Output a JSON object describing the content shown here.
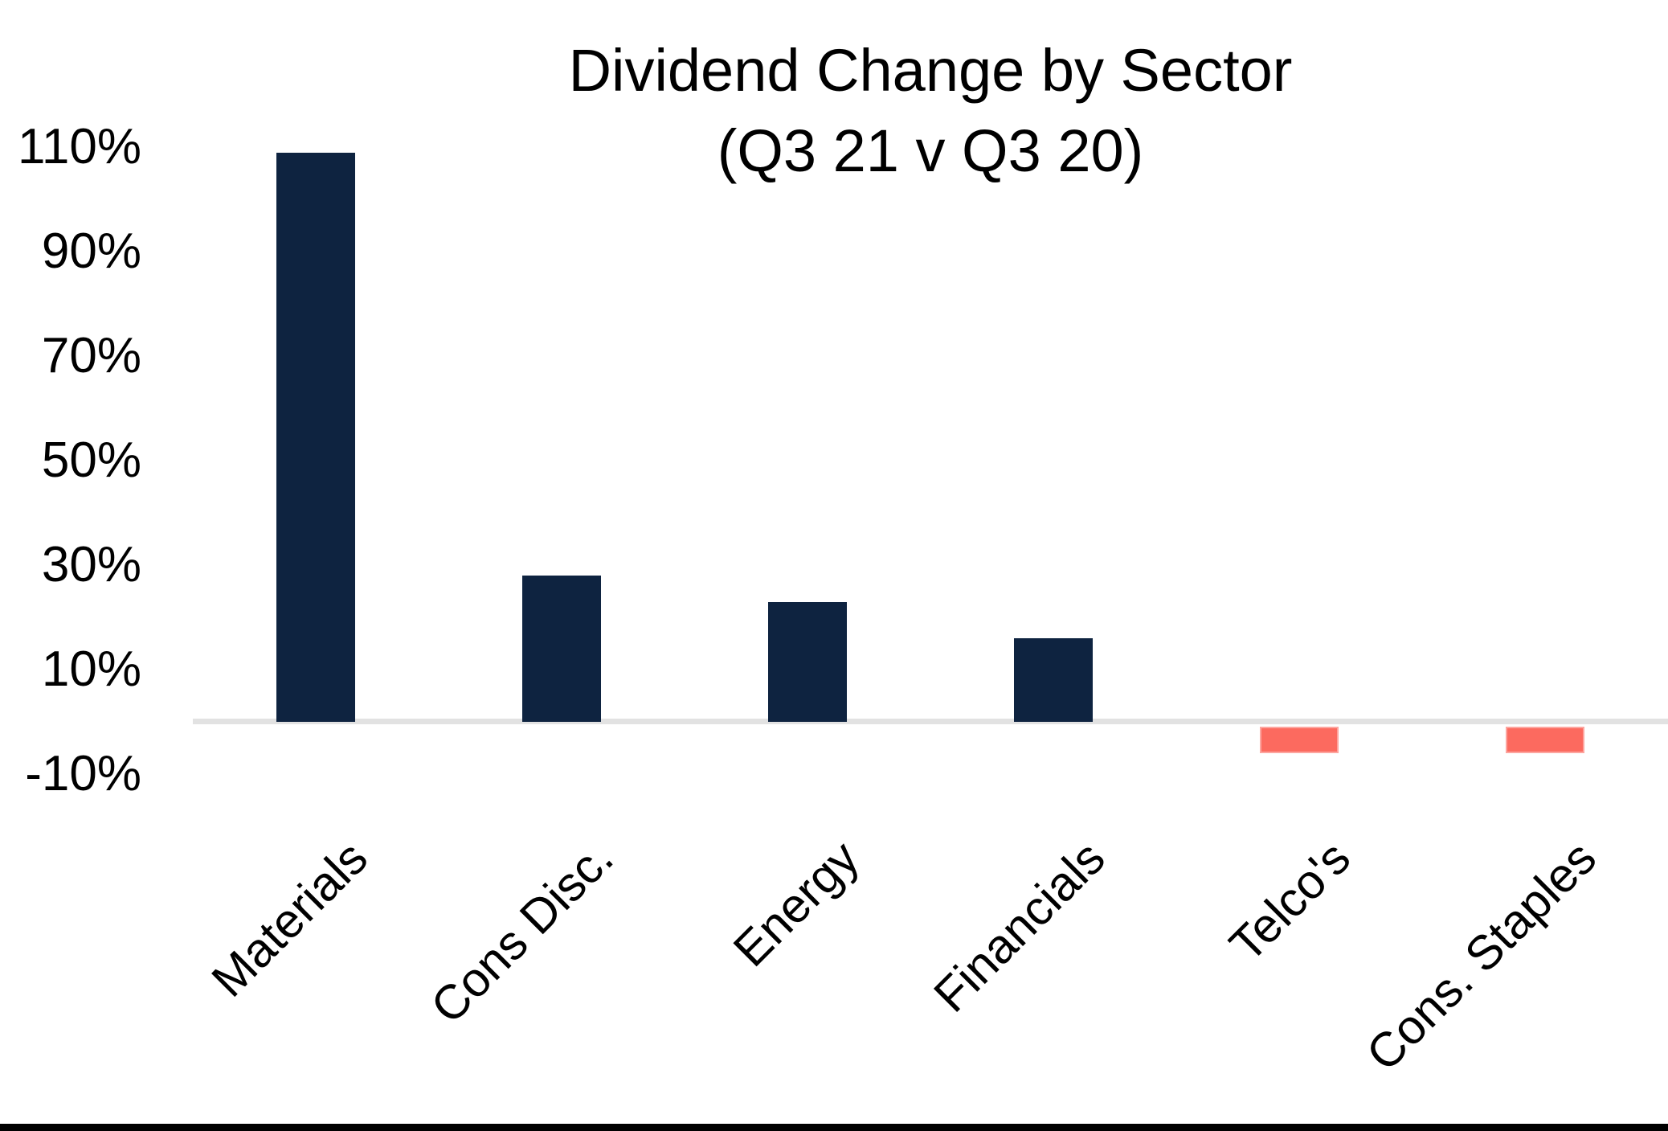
{
  "chart_data": {
    "type": "bar",
    "title_line1": "Dividend Change by Sector",
    "title_line2": "(Q3 21 v Q3 20)",
    "categories": [
      "Materials",
      "Cons Disc.",
      "Energy",
      "Financials",
      "Telco's",
      "Cons. Staples"
    ],
    "values": [
      109,
      28,
      23,
      16,
      -5,
      -5
    ],
    "unit": "%",
    "xlabel": "",
    "ylabel": "",
    "ylim": [
      -10,
      110
    ],
    "ytick_values": [
      110,
      90,
      70,
      50,
      30,
      10,
      -10
    ],
    "ytick_labels": [
      "110%",
      "90%",
      "70%",
      "50%",
      "30%",
      "10%",
      "-10%"
    ],
    "grid": false,
    "legend": false,
    "category_label_rotation_deg": 45,
    "colors": {
      "positive_bar": "#0e2340",
      "negative_bar": "#fc6a5f",
      "axis_line": "#e2e2e2",
      "text": "#000000",
      "background": "#ffffff",
      "bottom_edge_strip": "#000000"
    }
  }
}
